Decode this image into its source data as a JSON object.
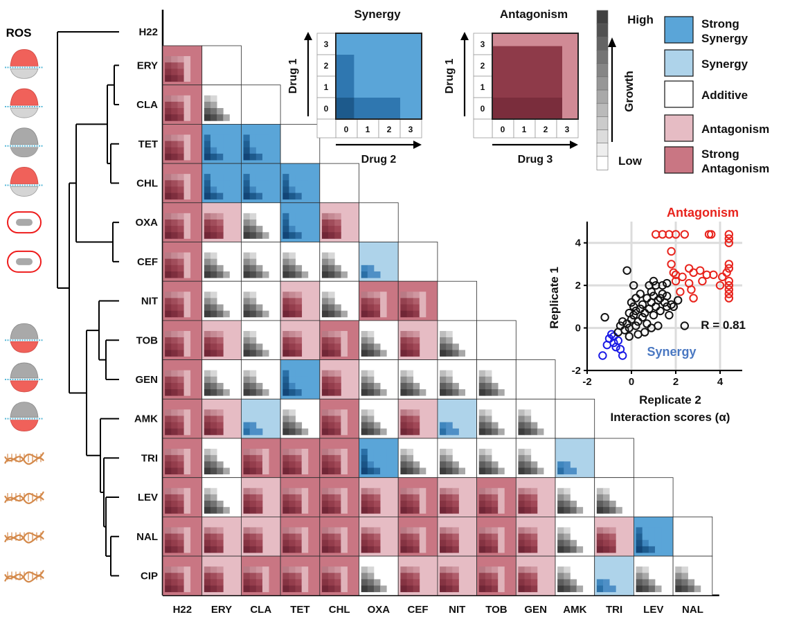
{
  "colors": {
    "strong_synergy": "#5aa5d8",
    "synergy": "#aed3ea",
    "additive": "#ffffff",
    "antagonism": "#e6bcc4",
    "strong_antagonism": "#c97683",
    "ros_label": "#ee1c1c",
    "antagonism_points": "#e8231c",
    "synergy_points": "#1a1ae6",
    "synergy_text": "#4a78c2",
    "neutral_points": "#111111"
  },
  "drugs": [
    "H22",
    "ERY",
    "CLA",
    "TET",
    "CHL",
    "OXA",
    "CEF",
    "NIT",
    "TOB",
    "GEN",
    "AMK",
    "TRI",
    "LEV",
    "NAL",
    "CIP"
  ],
  "row_labels": [
    "H22",
    "ERY",
    "CLA",
    "TET",
    "CHL",
    "OXA",
    "CEF",
    "NIT",
    "TOB",
    "GEN",
    "AMK",
    "TRI",
    "LEV",
    "NAL",
    "CIP"
  ],
  "col_labels": [
    "H22",
    "ERY",
    "CLA",
    "TET",
    "CHL",
    "OXA",
    "CEF",
    "NIT",
    "TOB",
    "GEN",
    "AMK",
    "TRI",
    "LEV",
    "NAL"
  ],
  "ros_label": "ROS",
  "icons": {
    "ros_ribosome": [
      0,
      1,
      3
    ],
    "gray_ribosome": [
      2
    ],
    "cell": [
      4,
      5
    ],
    "ribosome_lower": [
      8,
      9,
      10
    ],
    "dna": [
      11,
      12,
      13,
      14
    ]
  },
  "matrix": {
    "rows": [
      {
        "row": "ERY",
        "cells": [
          "SA"
        ]
      },
      {
        "row": "CLA",
        "cells": [
          "SA",
          "AD"
        ]
      },
      {
        "row": "TET",
        "cells": [
          "SA",
          "SS",
          "SS"
        ]
      },
      {
        "row": "CHL",
        "cells": [
          "SA",
          "SS",
          "SS",
          "SS"
        ]
      },
      {
        "row": "OXA",
        "cells": [
          "SA",
          "AN",
          "AD",
          "SS",
          "AN"
        ]
      },
      {
        "row": "CEF",
        "cells": [
          "SA",
          "AD",
          "AD",
          "AD",
          "AD",
          "SY"
        ]
      },
      {
        "row": "NIT",
        "cells": [
          "SA",
          "AD",
          "AD",
          "AN",
          "AD",
          "SA",
          "SA"
        ]
      },
      {
        "row": "TOB",
        "cells": [
          "SA",
          "AN",
          "AD",
          "AN",
          "SA",
          "AD",
          "AN",
          "AD"
        ]
      },
      {
        "row": "GEN",
        "cells": [
          "SA",
          "AD",
          "AD",
          "SS",
          "AN",
          "AD",
          "AD",
          "AD",
          "AD"
        ]
      },
      {
        "row": "AMK",
        "cells": [
          "SA",
          "AN",
          "SY",
          "AD",
          "SA",
          "AD",
          "AN",
          "SY",
          "AD",
          "AD"
        ]
      },
      {
        "row": "TRI",
        "cells": [
          "SA",
          "AD",
          "SA",
          "SA",
          "SA",
          "SS",
          "AD",
          "AD",
          "AD",
          "AD",
          "SY"
        ]
      },
      {
        "row": "LEV",
        "cells": [
          "SA",
          "AD",
          "AN",
          "SA",
          "SA",
          "AN",
          "SA",
          "AN",
          "SA",
          "AN",
          "AD",
          "AD"
        ]
      },
      {
        "row": "NAL",
        "cells": [
          "SA",
          "AN",
          "AN",
          "SA",
          "SA",
          "AN",
          "SA",
          "AN",
          "SA",
          "AN",
          "AD",
          "AN",
          "SS"
        ]
      },
      {
        "row": "CIP",
        "cells": [
          "SA",
          "AN",
          "SA",
          "SA",
          "SA",
          "AD",
          "AN",
          "AN",
          "SA",
          "AN",
          "AD",
          "SY",
          "AD",
          "AD"
        ]
      }
    ]
  },
  "diag_last": "H22",
  "example_synergy": {
    "title": "Synergy",
    "y_label": "Drug 1",
    "x_label": "Drug 2",
    "ticks": [
      "0",
      "1",
      "2",
      "3"
    ]
  },
  "example_antagonism": {
    "title": "Antagonism",
    "y_label": "Drug 1",
    "x_label": "Drug 3",
    "ticks": [
      "0",
      "1",
      "2",
      "3"
    ]
  },
  "growth_scale": {
    "high": "High",
    "low": "Low",
    "label": "Growth"
  },
  "legend": [
    {
      "key": "strong_synergy",
      "lines": [
        "Strong",
        "Synergy"
      ]
    },
    {
      "key": "synergy",
      "lines": [
        "Synergy"
      ]
    },
    {
      "key": "additive",
      "lines": [
        "Additive"
      ]
    },
    {
      "key": "antagonism",
      "lines": [
        "Antagonism"
      ]
    },
    {
      "key": "strong_antagonism",
      "lines": [
        "Strong",
        "Antagonism"
      ]
    }
  ],
  "chart_data": {
    "type": "scatter",
    "title": "",
    "xlabel": "Replicate 2\nInteraction scores (α)",
    "ylabel": "Replicate 1",
    "xlim": [
      -2,
      5
    ],
    "ylim": [
      -2,
      5
    ],
    "xticks": [
      -2,
      0,
      2,
      4
    ],
    "yticks": [
      -2,
      0,
      2,
      4
    ],
    "grid": true,
    "annotations": {
      "correlation": "R = 0.81",
      "antagonism": "Antagonism",
      "synergy": "Synergy"
    },
    "series": [
      {
        "name": "Antagonism",
        "color": "#e8231c",
        "points": [
          [
            1.1,
            4.4
          ],
          [
            1.4,
            4.4
          ],
          [
            1.7,
            4.4
          ],
          [
            2.0,
            4.4
          ],
          [
            2.4,
            4.4
          ],
          [
            3.5,
            4.4
          ],
          [
            3.6,
            4.4
          ],
          [
            4.4,
            4.4
          ],
          [
            4.4,
            4.2
          ],
          [
            4.4,
            4.0
          ],
          [
            1.8,
            3.6
          ],
          [
            1.8,
            3.0
          ],
          [
            1.9,
            2.6
          ],
          [
            2.0,
            2.5
          ],
          [
            2.6,
            2.8
          ],
          [
            2.8,
            2.6
          ],
          [
            3.1,
            2.7
          ],
          [
            3.2,
            2.2
          ],
          [
            3.4,
            2.5
          ],
          [
            3.7,
            2.5
          ],
          [
            4.1,
            2.4
          ],
          [
            4.3,
            2.6
          ],
          [
            4.4,
            3.0
          ],
          [
            4.4,
            2.8
          ],
          [
            4.4,
            2.2
          ],
          [
            4.4,
            2.0
          ],
          [
            4.4,
            1.8
          ],
          [
            4.4,
            1.6
          ],
          [
            4.4,
            1.4
          ],
          [
            2.3,
            2.4
          ],
          [
            2.0,
            2.2
          ],
          [
            2.2,
            1.7
          ],
          [
            2.7,
            1.8
          ],
          [
            2.8,
            1.4
          ],
          [
            2.6,
            2.1
          ],
          [
            4.0,
            2.0
          ]
        ]
      },
      {
        "name": "Synergy",
        "color": "#1a1ae6",
        "points": [
          [
            -1.3,
            -1.3
          ],
          [
            -1.1,
            -0.8
          ],
          [
            -1.0,
            -0.5
          ],
          [
            -0.9,
            -0.3
          ],
          [
            -0.8,
            -0.7
          ],
          [
            -0.7,
            -0.9
          ],
          [
            -0.6,
            -0.6
          ],
          [
            -0.5,
            -1.0
          ],
          [
            -0.4,
            -1.3
          ],
          [
            -0.8,
            -0.4
          ]
        ]
      },
      {
        "name": "Additive",
        "color": "#111111",
        "points": [
          [
            -0.2,
            2.7
          ],
          [
            -1.2,
            0.5
          ],
          [
            -0.6,
            -0.2
          ],
          [
            -0.5,
            0.1
          ],
          [
            -0.4,
            0.3
          ],
          [
            -0.3,
            -0.1
          ],
          [
            -0.2,
            0.2
          ],
          [
            -0.1,
            0.0
          ],
          [
            0.0,
            0.4
          ],
          [
            0.1,
            0.6
          ],
          [
            0.1,
            1.0
          ],
          [
            0.0,
            1.2
          ],
          [
            0.2,
            0.8
          ],
          [
            0.3,
            0.3
          ],
          [
            0.4,
            0.9
          ],
          [
            0.5,
            1.1
          ],
          [
            0.6,
            0.7
          ],
          [
            0.7,
            0.2
          ],
          [
            0.8,
            0.9
          ],
          [
            0.9,
            1.2
          ],
          [
            1.0,
            0.6
          ],
          [
            1.0,
            1.5
          ],
          [
            1.1,
            1.0
          ],
          [
            1.2,
            1.3
          ],
          [
            1.3,
            0.8
          ],
          [
            1.4,
            1.6
          ],
          [
            1.5,
            1.2
          ],
          [
            1.6,
            1.0
          ],
          [
            1.7,
            0.6
          ],
          [
            1.2,
            0.1
          ],
          [
            0.9,
            0.0
          ],
          [
            0.6,
            -0.2
          ],
          [
            0.3,
            -0.3
          ],
          [
            0.2,
            0.1
          ],
          [
            -0.1,
            -0.4
          ],
          [
            0.4,
            1.6
          ],
          [
            0.1,
            2.0
          ],
          [
            0.8,
            2.0
          ],
          [
            1.0,
            2.2
          ],
          [
            1.4,
            2.0
          ],
          [
            1.6,
            2.1
          ],
          [
            0.9,
            1.7
          ],
          [
            0.5,
            0.5
          ],
          [
            1.8,
            1.1
          ],
          [
            2.1,
            1.3
          ],
          [
            2.4,
            0.1
          ],
          [
            1.3,
            1.4
          ],
          [
            1.1,
            2.0
          ],
          [
            0.7,
            1.4
          ],
          [
            -0.1,
            0.7
          ],
          [
            0.2,
            1.4
          ],
          [
            1.6,
            1.5
          ],
          [
            1.9,
            1.0
          ]
        ]
      }
    ]
  }
}
